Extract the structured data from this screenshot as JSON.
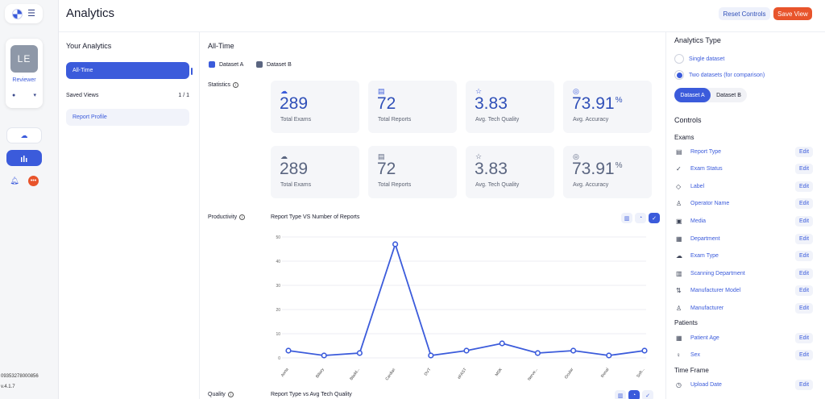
{
  "app": {
    "title": "Analytics",
    "phone": "09353278000856",
    "version": "v.4.1.7"
  },
  "header": {
    "reset_label": "Reset Controls",
    "save_label": "Save View"
  },
  "rail": {
    "avatar_initials": "LE",
    "role": "Reviewer",
    "icons": [
      "logo-icon",
      "menu-icon",
      "user-icon",
      "chevron-down-icon",
      "cloud-upload-icon",
      "bar-chart-icon",
      "bell-icon",
      "more-icon"
    ],
    "notification_color": "#e8542b"
  },
  "analytics_list": {
    "title": "Your Analytics",
    "active_item": "All-Time",
    "saved_views_label": "Saved Views",
    "saved_views_page": "1 / 1",
    "saved_items": [
      "Report Profile"
    ]
  },
  "main": {
    "title": "All-Time",
    "legend": [
      {
        "label": "Dataset A",
        "color": "#3b5bdb"
      },
      {
        "label": "Dataset B",
        "color": "#5a6580"
      }
    ],
    "statistics_label": "Statistics",
    "stats_a": [
      {
        "icon": "cloud-upload-icon",
        "value": "289",
        "unit": "",
        "label": "Total Exams"
      },
      {
        "icon": "report-icon",
        "value": "72",
        "unit": "",
        "label": "Total Reports"
      },
      {
        "icon": "star-icon",
        "value": "3.83",
        "unit": "",
        "label": "Avg. Tech Quality"
      },
      {
        "icon": "target-icon",
        "value": "73.91",
        "unit": "%",
        "label": "Avg. Accuracy"
      }
    ],
    "stats_b": [
      {
        "icon": "cloud-upload-icon",
        "value": "289",
        "unit": "",
        "label": "Total Exams"
      },
      {
        "icon": "report-icon",
        "value": "72",
        "unit": "",
        "label": "Total Reports"
      },
      {
        "icon": "star-icon",
        "value": "3.83",
        "unit": "",
        "label": "Avg. Tech Quality"
      },
      {
        "icon": "target-icon",
        "value": "73.91",
        "unit": "%",
        "label": "Avg. Accuracy"
      }
    ],
    "productivity_label": "Productivity",
    "quality_label": "Quality",
    "quality_chart_title": "Report Type vs Avg Tech Quality"
  },
  "chart_data": {
    "type": "line",
    "title": "Report Type VS Number of Reports",
    "xlabel": "",
    "ylabel": "",
    "categories": [
      "Aorta",
      "Biliary",
      "Bladd...",
      "Cardiac",
      "DVT",
      "eFAST",
      "MSK",
      "Nerve...",
      "Ocular",
      "Renal",
      "Soft..."
    ],
    "series": [
      {
        "values": [
          3,
          1,
          2,
          47,
          1,
          3,
          6,
          2,
          3,
          1,
          3
        ],
        "color": "#3b5bdb"
      }
    ],
    "ylim": [
      0,
      50
    ],
    "yticks": [
      0,
      10,
      20,
      30,
      40,
      50
    ],
    "grid": true
  },
  "controls": {
    "analytics_type_title": "Analytics Type",
    "type_options": [
      {
        "label": "Single dataset",
        "selected": false
      },
      {
        "label": "Two datasets (for comparison)",
        "selected": true
      }
    ],
    "dataset_tabs": [
      "Dataset A",
      "Dataset B"
    ],
    "controls_title": "Controls",
    "edit_label": "Edit",
    "exams_title": "Exams",
    "exams": [
      {
        "icon": "report-type-icon",
        "label": "Report Type"
      },
      {
        "icon": "check-icon",
        "label": "Exam Status"
      },
      {
        "icon": "tag-icon",
        "label": "Label"
      },
      {
        "icon": "person-icon",
        "label": "Operator Name"
      },
      {
        "icon": "media-icon",
        "label": "Media"
      },
      {
        "icon": "building-icon",
        "label": "Department"
      },
      {
        "icon": "cloud-upload-icon",
        "label": "Exam Type"
      },
      {
        "icon": "hospital-icon",
        "label": "Scanning Department"
      },
      {
        "icon": "flow-icon",
        "label": "Manufacturer Model"
      },
      {
        "icon": "people-icon",
        "label": "Manufacturer"
      }
    ],
    "patients_title": "Patients",
    "patients": [
      {
        "icon": "calendar-icon",
        "label": "Patient Age"
      },
      {
        "icon": "gender-icon",
        "label": "Sex"
      }
    ],
    "timeframe_title": "Time Frame",
    "timeframe": [
      {
        "icon": "clock-icon",
        "label": "Upload Date"
      }
    ]
  }
}
